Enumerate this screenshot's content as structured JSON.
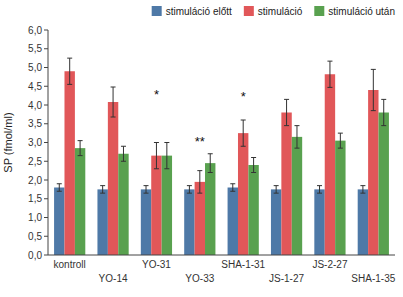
{
  "chart_data": {
    "type": "bar",
    "ylabel": "SP (fmol/ml)",
    "categories": [
      "kontroll",
      "YO-14",
      "YO-31",
      "YO-33",
      "SHA-1-31",
      "JS-1-27",
      "JS-2-27",
      "SHA-1-35"
    ],
    "series": [
      {
        "name": "stimuláció előtt",
        "values": [
          1.8,
          1.75,
          1.75,
          1.75,
          1.8,
          1.75,
          1.75,
          1.75
        ],
        "errors": [
          0.1,
          0.1,
          0.1,
          0.1,
          0.1,
          0.1,
          0.1,
          0.1
        ]
      },
      {
        "name": "stimuláció",
        "values": [
          4.9,
          4.08,
          2.65,
          1.95,
          3.25,
          3.8,
          4.82,
          4.4
        ],
        "errors": [
          0.35,
          0.4,
          0.35,
          0.3,
          0.35,
          0.35,
          0.35,
          0.55
        ]
      },
      {
        "name": "stimuláció után",
        "values": [
          2.85,
          2.7,
          2.65,
          2.45,
          2.4,
          3.15,
          3.05,
          3.8
        ],
        "errors": [
          0.2,
          0.2,
          0.35,
          0.25,
          0.2,
          0.3,
          0.2,
          0.35
        ]
      }
    ],
    "ylim": [
      0.0,
      6.0
    ],
    "yticks": [
      {
        "value": 0.0,
        "label": "0,0"
      },
      {
        "value": 0.5,
        "label": "0,5"
      },
      {
        "value": 1.0,
        "label": "1,0"
      },
      {
        "value": 1.5,
        "label": "1,5"
      },
      {
        "value": 2.0,
        "label": "2,0"
      },
      {
        "value": 2.5,
        "label": "2,5"
      },
      {
        "value": 3.0,
        "label": "3,0"
      },
      {
        "value": 3.5,
        "label": "3,5"
      },
      {
        "value": 4.0,
        "label": "4,0"
      },
      {
        "value": 4.5,
        "label": "4,5"
      },
      {
        "value": 5.0,
        "label": "5,0"
      },
      {
        "value": 5.5,
        "label": "5,5"
      },
      {
        "value": 6.0,
        "label": "6,0"
      }
    ],
    "annotations": [
      {
        "text": "*",
        "category": "YO-31",
        "y": 4.15
      },
      {
        "text": "**",
        "category": "YO-33",
        "y": 2.92
      },
      {
        "text": "*",
        "category": "SHA-1-31",
        "y": 4.1
      }
    ],
    "legend": "upper right",
    "grid": false
  }
}
